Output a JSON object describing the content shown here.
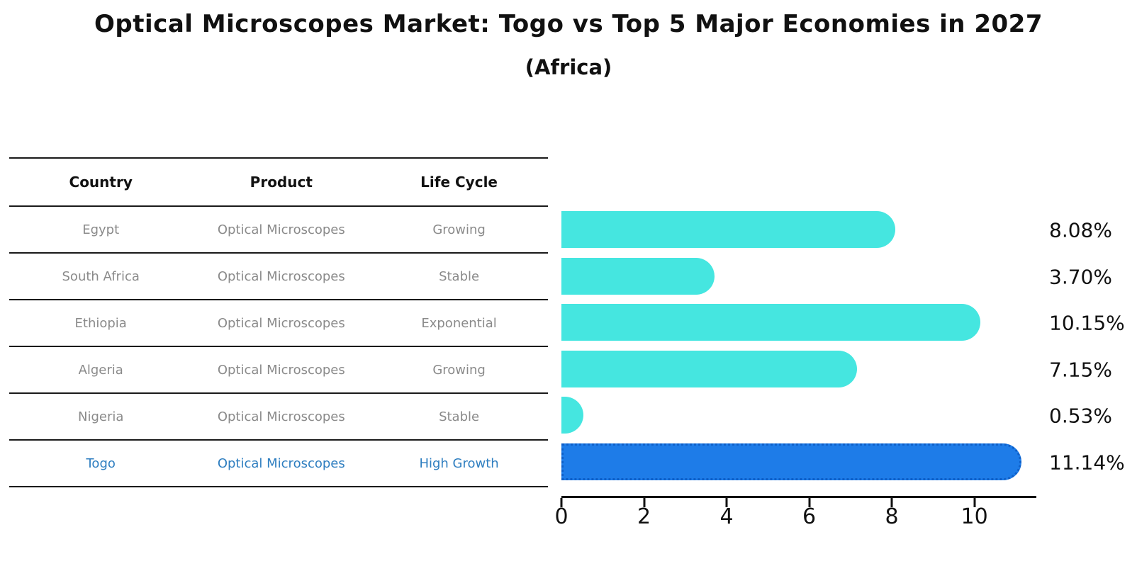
{
  "title": "Optical Microscopes Market: Togo vs Top 5 Major Economies in 2027",
  "subtitle": "(Africa)",
  "table": {
    "headers": {
      "country": "Country",
      "product": "Product",
      "life_cycle": "Life Cycle"
    },
    "rows": [
      {
        "country": "Egypt",
        "product": "Optical Microscopes",
        "life_cycle": "Growing",
        "highlight": false
      },
      {
        "country": "South Africa",
        "product": "Optical Microscopes",
        "life_cycle": "Stable",
        "highlight": false
      },
      {
        "country": "Ethiopia",
        "product": "Optical Microscopes",
        "life_cycle": "Exponential",
        "highlight": false
      },
      {
        "country": "Algeria",
        "product": "Optical Microscopes",
        "life_cycle": "Growing",
        "highlight": false
      },
      {
        "country": "Nigeria",
        "product": "Optical Microscopes",
        "life_cycle": "Stable",
        "highlight": false
      },
      {
        "country": "Togo",
        "product": "Optical Microscopes",
        "life_cycle": "High Growth",
        "highlight": true
      }
    ]
  },
  "chart_data": {
    "type": "bar",
    "orientation": "horizontal",
    "title": "Optical Microscopes Market: Togo vs Top 5 Major Economies in 2027 (Africa)",
    "categories": [
      "Egypt",
      "South Africa",
      "Ethiopia",
      "Algeria",
      "Nigeria",
      "Togo"
    ],
    "values": [
      8.08,
      3.7,
      10.15,
      7.15,
      0.53,
      11.14
    ],
    "value_labels": [
      "8.08%",
      "3.70%",
      "10.15%",
      "7.15%",
      "0.53%",
      "11.14%"
    ],
    "xlabel": "",
    "ylabel": "",
    "xlim": [
      0,
      11.5
    ],
    "xticks": [
      0,
      2,
      4,
      6,
      8,
      10
    ],
    "grid": false,
    "legend": false,
    "bar_color": "#45e6e0",
    "highlight_color": "#1e7ce8",
    "highlight_border_color": "#0e5fc8",
    "highlight_index": 5
  },
  "colors": {
    "background": "#ffffff",
    "table_line": "#1a1a1a",
    "table_text_gray": "#8a8a8a",
    "highlight_text_blue": "#2e7ec0",
    "axis_black": "#111111"
  }
}
